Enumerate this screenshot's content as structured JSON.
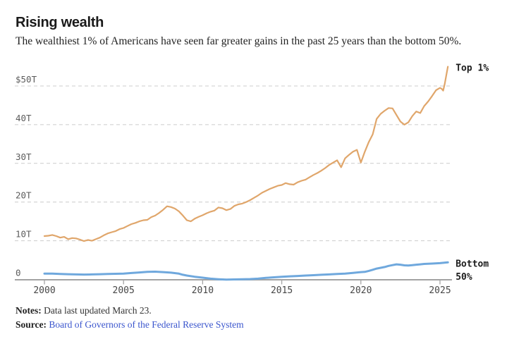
{
  "header": {
    "title": "Rising wealth",
    "subtitle": "The wealthiest 1% of Americans have seen far greater gains in the past 25 years than the bottom 50%."
  },
  "footer": {
    "notes_label": "Notes:",
    "notes_text": "Data last updated March 23.",
    "source_label": "Source:",
    "source_link_text": "Board of Governors of the Federal Reserve System"
  },
  "chart_data": {
    "type": "line",
    "title": "Rising wealth",
    "unit": "trillions of US dollars",
    "grid": "dashed horizontal",
    "legend_position": "end-of-line labels",
    "x_axis": {
      "range": [
        2000,
        2025.7
      ],
      "ticks": [
        2000,
        2005,
        2010,
        2015,
        2020,
        2025
      ],
      "tick_labels": [
        "2000",
        "2005",
        "2010",
        "2015",
        "2020",
        "2025"
      ]
    },
    "y_axis": {
      "range": [
        0,
        55
      ],
      "tick_values": [
        50,
        40,
        30,
        20,
        10,
        0
      ],
      "tick_labels": [
        "$50T",
        "40T",
        "30T",
        "20T",
        "10T",
        "0"
      ]
    },
    "style": {
      "grid_color": "#cccccc",
      "axis_color": "#a3a3a3",
      "y_label_color": "#5c5c5c",
      "x_label_color": "#474747",
      "series_label_color": "#1c1c1c"
    },
    "series": [
      {
        "name": "Top 1%",
        "label_lines": [
          "Top 1%"
        ],
        "color": "#e0a66b",
        "width": 2.2,
        "points": [
          [
            2000.0,
            11.2
          ],
          [
            2000.25,
            11.3
          ],
          [
            2000.5,
            11.5
          ],
          [
            2000.75,
            11.2
          ],
          [
            2001.0,
            10.8
          ],
          [
            2001.25,
            11.0
          ],
          [
            2001.5,
            10.4
          ],
          [
            2001.75,
            10.7
          ],
          [
            2002.0,
            10.6
          ],
          [
            2002.25,
            10.3
          ],
          [
            2002.5,
            9.9
          ],
          [
            2002.75,
            10.2
          ],
          [
            2003.0,
            10.0
          ],
          [
            2003.25,
            10.4
          ],
          [
            2003.5,
            10.8
          ],
          [
            2003.75,
            11.4
          ],
          [
            2004.0,
            11.9
          ],
          [
            2004.25,
            12.2
          ],
          [
            2004.5,
            12.5
          ],
          [
            2004.75,
            13.0
          ],
          [
            2005.0,
            13.3
          ],
          [
            2005.25,
            13.8
          ],
          [
            2005.5,
            14.3
          ],
          [
            2005.75,
            14.6
          ],
          [
            2006.0,
            15.0
          ],
          [
            2006.25,
            15.3
          ],
          [
            2006.5,
            15.4
          ],
          [
            2006.75,
            16.1
          ],
          [
            2007.0,
            16.5
          ],
          [
            2007.25,
            17.2
          ],
          [
            2007.5,
            18.0
          ],
          [
            2007.75,
            18.9
          ],
          [
            2008.0,
            18.7
          ],
          [
            2008.25,
            18.3
          ],
          [
            2008.5,
            17.6
          ],
          [
            2008.75,
            16.5
          ],
          [
            2009.0,
            15.3
          ],
          [
            2009.25,
            15.0
          ],
          [
            2009.5,
            15.7
          ],
          [
            2009.75,
            16.2
          ],
          [
            2010.0,
            16.6
          ],
          [
            2010.25,
            17.1
          ],
          [
            2010.5,
            17.5
          ],
          [
            2010.75,
            17.8
          ],
          [
            2011.0,
            18.6
          ],
          [
            2011.25,
            18.4
          ],
          [
            2011.5,
            17.9
          ],
          [
            2011.75,
            18.2
          ],
          [
            2012.0,
            19.0
          ],
          [
            2012.25,
            19.4
          ],
          [
            2012.5,
            19.6
          ],
          [
            2012.75,
            20.0
          ],
          [
            2013.0,
            20.5
          ],
          [
            2013.25,
            21.1
          ],
          [
            2013.5,
            21.7
          ],
          [
            2013.75,
            22.4
          ],
          [
            2014.0,
            22.9
          ],
          [
            2014.25,
            23.4
          ],
          [
            2014.5,
            23.8
          ],
          [
            2014.75,
            24.2
          ],
          [
            2015.0,
            24.4
          ],
          [
            2015.25,
            24.9
          ],
          [
            2015.5,
            24.6
          ],
          [
            2015.75,
            24.5
          ],
          [
            2016.0,
            25.1
          ],
          [
            2016.25,
            25.5
          ],
          [
            2016.5,
            25.8
          ],
          [
            2016.75,
            26.4
          ],
          [
            2017.0,
            27.0
          ],
          [
            2017.25,
            27.5
          ],
          [
            2017.5,
            28.1
          ],
          [
            2017.75,
            28.8
          ],
          [
            2018.0,
            29.6
          ],
          [
            2018.25,
            30.2
          ],
          [
            2018.5,
            30.8
          ],
          [
            2018.75,
            29.0
          ],
          [
            2019.0,
            31.3
          ],
          [
            2019.25,
            32.2
          ],
          [
            2019.5,
            33.0
          ],
          [
            2019.75,
            33.5
          ],
          [
            2020.0,
            30.2
          ],
          [
            2020.25,
            33.0
          ],
          [
            2020.5,
            35.5
          ],
          [
            2020.75,
            37.5
          ],
          [
            2021.0,
            41.5
          ],
          [
            2021.25,
            42.8
          ],
          [
            2021.5,
            43.6
          ],
          [
            2021.75,
            44.3
          ],
          [
            2022.0,
            44.2
          ],
          [
            2022.25,
            42.5
          ],
          [
            2022.5,
            40.8
          ],
          [
            2022.75,
            40.0
          ],
          [
            2023.0,
            40.6
          ],
          [
            2023.25,
            42.2
          ],
          [
            2023.5,
            43.4
          ],
          [
            2023.75,
            43.0
          ],
          [
            2024.0,
            44.8
          ],
          [
            2024.25,
            46.0
          ],
          [
            2024.5,
            47.4
          ],
          [
            2024.75,
            48.9
          ],
          [
            2025.0,
            49.5
          ],
          [
            2025.1,
            49.3
          ],
          [
            2025.2,
            48.8
          ],
          [
            2025.3,
            50.5
          ],
          [
            2025.4,
            52.8
          ],
          [
            2025.5,
            55.0
          ]
        ]
      },
      {
        "name": "Bottom 50%",
        "label_lines": [
          "Bottom",
          "50%"
        ],
        "color": "#6fa8dd",
        "width": 3,
        "points": [
          [
            2000.0,
            1.5
          ],
          [
            2000.5,
            1.5
          ],
          [
            2001.0,
            1.4
          ],
          [
            2001.5,
            1.35
          ],
          [
            2002.0,
            1.3
          ],
          [
            2002.5,
            1.25
          ],
          [
            2003.0,
            1.3
          ],
          [
            2003.5,
            1.35
          ],
          [
            2004.0,
            1.4
          ],
          [
            2004.5,
            1.45
          ],
          [
            2005.0,
            1.5
          ],
          [
            2005.5,
            1.65
          ],
          [
            2006.0,
            1.8
          ],
          [
            2006.5,
            1.95
          ],
          [
            2007.0,
            2.0
          ],
          [
            2007.5,
            1.9
          ],
          [
            2008.0,
            1.75
          ],
          [
            2008.5,
            1.5
          ],
          [
            2008.75,
            1.2
          ],
          [
            2009.0,
            1.0
          ],
          [
            2009.5,
            0.7
          ],
          [
            2010.0,
            0.45
          ],
          [
            2010.5,
            0.2
          ],
          [
            2011.0,
            0.05
          ],
          [
            2011.5,
            -0.05
          ],
          [
            2012.0,
            0.0
          ],
          [
            2012.5,
            0.05
          ],
          [
            2013.0,
            0.1
          ],
          [
            2013.5,
            0.2
          ],
          [
            2014.0,
            0.4
          ],
          [
            2014.5,
            0.55
          ],
          [
            2015.0,
            0.7
          ],
          [
            2015.5,
            0.8
          ],
          [
            2016.0,
            0.9
          ],
          [
            2016.5,
            1.0
          ],
          [
            2017.0,
            1.1
          ],
          [
            2017.5,
            1.2
          ],
          [
            2018.0,
            1.3
          ],
          [
            2018.5,
            1.4
          ],
          [
            2019.0,
            1.5
          ],
          [
            2019.5,
            1.7
          ],
          [
            2020.0,
            1.9
          ],
          [
            2020.25,
            1.95
          ],
          [
            2020.5,
            2.2
          ],
          [
            2020.75,
            2.5
          ],
          [
            2021.0,
            2.8
          ],
          [
            2021.25,
            3.0
          ],
          [
            2021.5,
            3.2
          ],
          [
            2021.75,
            3.5
          ],
          [
            2022.0,
            3.7
          ],
          [
            2022.25,
            3.9
          ],
          [
            2022.5,
            3.8
          ],
          [
            2022.75,
            3.65
          ],
          [
            2023.0,
            3.6
          ],
          [
            2023.25,
            3.7
          ],
          [
            2023.5,
            3.8
          ],
          [
            2023.75,
            3.9
          ],
          [
            2024.0,
            4.0
          ],
          [
            2024.5,
            4.1
          ],
          [
            2025.0,
            4.2
          ],
          [
            2025.5,
            4.4
          ]
        ]
      }
    ]
  }
}
